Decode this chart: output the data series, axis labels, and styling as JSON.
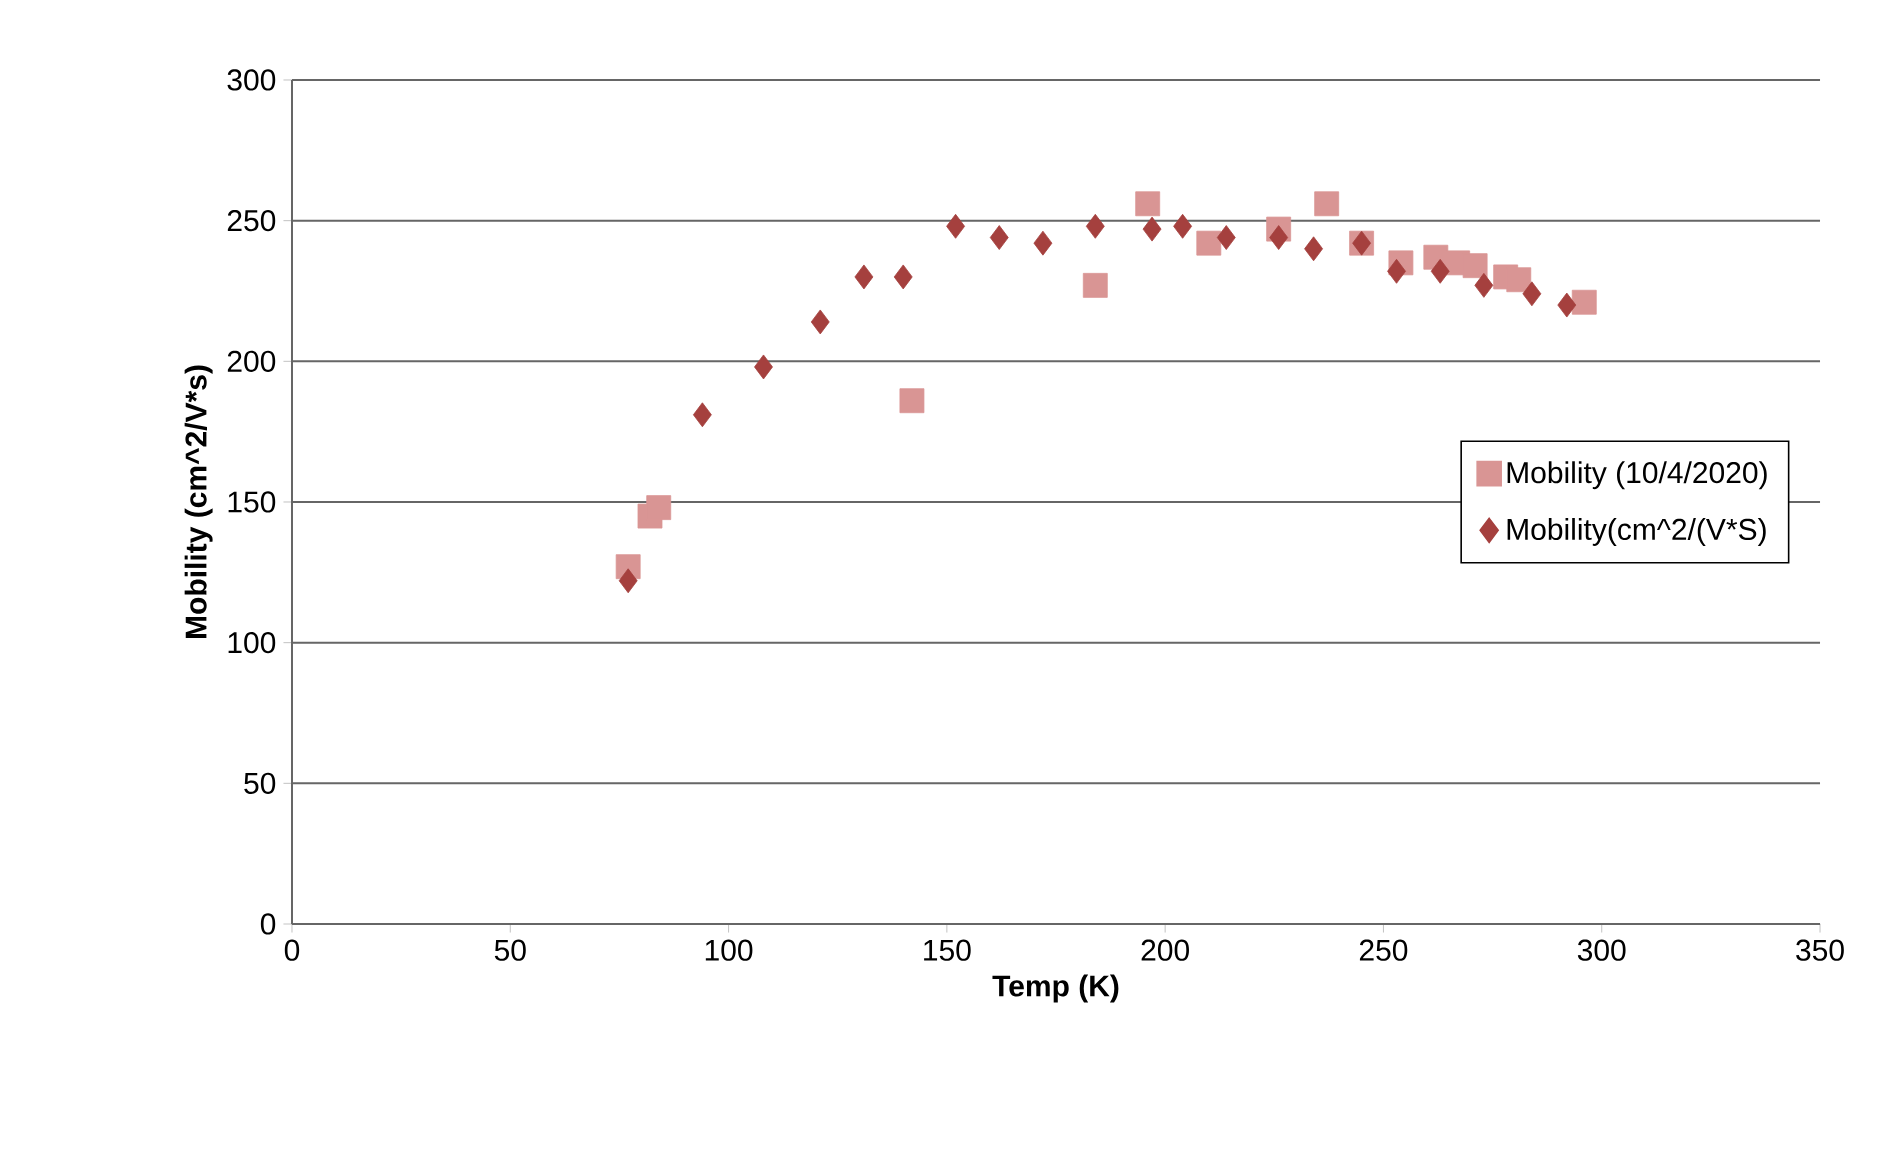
{
  "chart_data": {
    "type": "scatter",
    "xlabel": "Temp (K)",
    "ylabel": "Mobility (cm^2/V*s)",
    "xlim": [
      0,
      350
    ],
    "ylim": [
      0,
      300
    ],
    "xticks": [
      0,
      50,
      100,
      150,
      200,
      250,
      300,
      350
    ],
    "yticks": [
      0,
      50,
      100,
      150,
      200,
      250,
      300
    ],
    "grid": "y",
    "legend": "right",
    "series": [
      {
        "name": "Mobility (10/4/2020)",
        "color": "#d99594",
        "marker": "square",
        "x": [
          77,
          82,
          84,
          142,
          184,
          196,
          210,
          226,
          237,
          245,
          254,
          262,
          267,
          271,
          278,
          281,
          296
        ],
        "values": [
          127,
          145,
          148,
          186,
          227,
          256,
          242,
          247,
          256,
          242,
          235,
          237,
          235,
          234,
          230,
          229,
          221
        ]
      },
      {
        "name": "Mobility(cm^2/(V*S)",
        "color": "#a5403e",
        "marker": "diamond",
        "x": [
          77,
          94,
          108,
          121,
          131,
          140,
          152,
          162,
          172,
          184,
          197,
          204,
          214,
          226,
          234,
          245,
          253,
          263,
          273,
          284,
          292
        ],
        "values": [
          122,
          181,
          198,
          214,
          230,
          230,
          248,
          244,
          242,
          248,
          247,
          248,
          244,
          244,
          240,
          242,
          232,
          232,
          227,
          224,
          220
        ]
      }
    ]
  }
}
